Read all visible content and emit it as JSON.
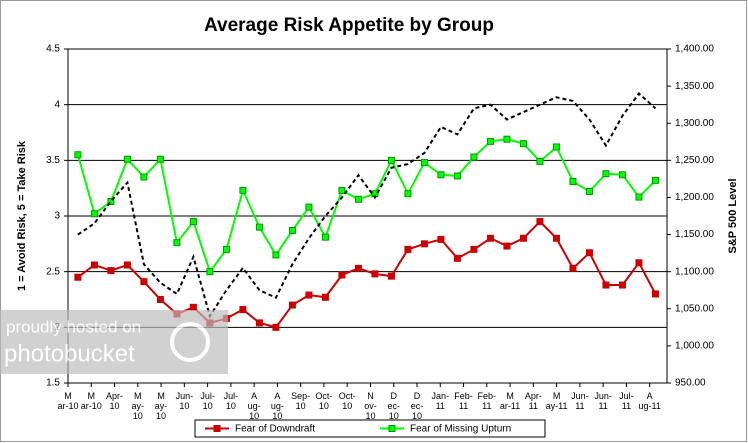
{
  "chart_data": {
    "type": "line",
    "title": "Average Risk Appetite by Group",
    "ylabel": "1 = Avoid Risk, 5 = Take Risk",
    "y2label": "S&P 500 Level",
    "watermark": [
      "proudly hosted on",
      "photobucket"
    ],
    "xlim": [
      0.4,
      36.7
    ],
    "xticks": [
      {
        "value": 0.4,
        "label": "M\nar-10"
      },
      {
        "value": 1.81,
        "label": "M\nar-10"
      },
      {
        "value": 3.22,
        "label": "Apr-\n10"
      },
      {
        "value": 4.63,
        "label": "M\nay-\n10"
      },
      {
        "value": 6.04,
        "label": "M\nay-\n10"
      },
      {
        "value": 7.45,
        "label": "Jun-\n10"
      },
      {
        "value": 8.86,
        "label": "Jul-\n10"
      },
      {
        "value": 10.27,
        "label": "Jul-\n10"
      },
      {
        "value": 11.68,
        "label": "A\nug-\n10"
      },
      {
        "value": 13.09,
        "label": "A\nug-\n10"
      },
      {
        "value": 14.5,
        "label": "Sep-\n10"
      },
      {
        "value": 15.91,
        "label": "Oct-\n10"
      },
      {
        "value": 17.32,
        "label": "Oct-\n10"
      },
      {
        "value": 18.73,
        "label": "N\nov-\n10"
      },
      {
        "value": 20.14,
        "label": "D\nec-\n10"
      },
      {
        "value": 21.55,
        "label": "D\nec-\n10"
      },
      {
        "value": 22.96,
        "label": "Jan-\n11"
      },
      {
        "value": 24.37,
        "label": "Feb-\n11"
      },
      {
        "value": 25.78,
        "label": "Feb-\n11"
      },
      {
        "value": 27.19,
        "label": "M\nar-11"
      },
      {
        "value": 28.6,
        "label": "Apr-\n11"
      },
      {
        "value": 30.01,
        "label": "M\nay-11"
      },
      {
        "value": 31.42,
        "label": "Jun-\n11"
      },
      {
        "value": 32.83,
        "label": "Jun-\n11"
      },
      {
        "value": 34.24,
        "label": "Jul-\n11"
      },
      {
        "value": 35.65,
        "label": "A\nug-11"
      }
    ],
    "x": [
      1,
      2,
      3,
      4,
      5,
      6,
      7,
      8,
      9,
      10,
      11,
      12,
      13,
      14,
      15,
      16,
      17,
      18,
      19,
      20,
      21,
      22,
      23,
      24,
      25,
      26,
      27,
      28,
      29,
      30,
      31,
      32,
      33,
      34,
      35,
      36
    ],
    "ylim": [
      1.5,
      4.5
    ],
    "yticks": [
      1.5,
      2,
      2.5,
      3,
      3.5,
      4,
      4.5
    ],
    "y2lim": [
      950,
      1400
    ],
    "y2ticks": [
      {
        "value": 950,
        "label": "950.00"
      },
      {
        "value": 1000,
        "label": "1,000.00"
      },
      {
        "value": 1050,
        "label": "1,050.00"
      },
      {
        "value": 1100,
        "label": "1,100.00"
      },
      {
        "value": 1150,
        "label": "1,150.00"
      },
      {
        "value": 1200,
        "label": "1,200.00"
      },
      {
        "value": 1250,
        "label": "1,250.00"
      },
      {
        "value": 1300,
        "label": "1,300.00"
      },
      {
        "value": 1350,
        "label": "1,350.00"
      },
      {
        "value": 1400,
        "label": "1,400.00"
      }
    ],
    "grid": true,
    "legend": "bottom",
    "series": [
      {
        "name": "Fear of Downdraft",
        "color": "#cc0000",
        "marker": "#cc0000",
        "values": [
          2.45,
          2.56,
          2.51,
          2.56,
          2.41,
          2.25,
          2.12,
          2.18,
          2.04,
          2.08,
          2.16,
          2.04,
          2.0,
          2.2,
          2.29,
          2.27,
          2.47,
          2.53,
          2.48,
          2.46,
          2.7,
          2.75,
          2.79,
          2.62,
          2.7,
          2.8,
          2.73,
          2.8,
          2.95,
          2.8,
          2.53,
          2.67,
          2.38,
          2.38,
          2.58,
          2.3
        ]
      },
      {
        "name": "Fear of Missing Upturn",
        "color": "#00ff00",
        "marker": "#009900",
        "values": [
          3.55,
          3.02,
          3.13,
          3.51,
          3.35,
          3.51,
          2.76,
          2.95,
          2.5,
          2.7,
          3.23,
          2.9,
          2.65,
          2.87,
          3.08,
          2.81,
          3.23,
          3.15,
          3.2,
          3.5,
          3.2,
          3.48,
          3.37,
          3.36,
          3.53,
          3.67,
          3.69,
          3.65,
          3.49,
          3.62,
          3.31,
          3.22,
          3.38,
          3.37,
          3.17,
          3.32
        ]
      },
      {
        "axis": "y2",
        "color": "#000000",
        "dashed": true,
        "values": [
          1150,
          1165,
          1195,
          1220,
          1110,
          1085,
          1070,
          1120,
          1040,
          1075,
          1105,
          1075,
          1065,
          1110,
          1145,
          1175,
          1200,
          1230,
          1200,
          1240,
          1245,
          1260,
          1295,
          1285,
          1320,
          1325,
          1305,
          1315,
          1325,
          1335,
          1330,
          1305,
          1270,
          1310,
          1340,
          1320
        ]
      }
    ]
  }
}
